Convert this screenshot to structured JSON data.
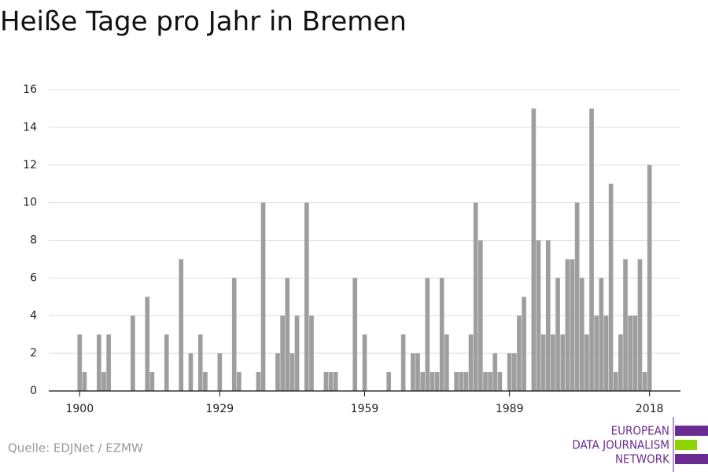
{
  "chart_data": {
    "type": "bar",
    "title": "Heiße Tage pro Jahr in Bremen",
    "source": "Quelle: EDJNet / EZMW",
    "logo": [
      "EUROPEAN",
      "DATA JOURNALISM",
      "NETWORK"
    ],
    "color": "#9e9e9e",
    "grid": true,
    "x": [
      1900,
      1901,
      1902,
      1903,
      1904,
      1905,
      1906,
      1907,
      1908,
      1909,
      1910,
      1911,
      1912,
      1913,
      1914,
      1915,
      1916,
      1917,
      1918,
      1919,
      1920,
      1921,
      1922,
      1923,
      1924,
      1925,
      1926,
      1927,
      1928,
      1929,
      1930,
      1931,
      1932,
      1933,
      1934,
      1935,
      1936,
      1937,
      1938,
      1939,
      1940,
      1941,
      1942,
      1943,
      1944,
      1945,
      1946,
      1947,
      1948,
      1949,
      1950,
      1951,
      1952,
      1953,
      1954,
      1955,
      1956,
      1957,
      1958,
      1959,
      1960,
      1961,
      1962,
      1963,
      1964,
      1965,
      1966,
      1967,
      1968,
      1969,
      1970,
      1971,
      1972,
      1973,
      1974,
      1975,
      1976,
      1977,
      1978,
      1979,
      1980,
      1981,
      1982,
      1983,
      1984,
      1985,
      1986,
      1987,
      1988,
      1989,
      1990,
      1991,
      1992,
      1993,
      1994,
      1995,
      1996,
      1997,
      1998,
      1999,
      2000,
      2001,
      2002,
      2003,
      2004,
      2005,
      2006,
      2007,
      2008,
      2009,
      2010,
      2011,
      2012,
      2013,
      2014,
      2015,
      2016,
      2017,
      2018
    ],
    "values": [
      3,
      1,
      0,
      0,
      3,
      1,
      3,
      0,
      0,
      0,
      0,
      4,
      0,
      0,
      5,
      1,
      0,
      0,
      3,
      0,
      0,
      7,
      0,
      2,
      0,
      3,
      1,
      0,
      0,
      2,
      0,
      0,
      6,
      1,
      0,
      0,
      0,
      1,
      10,
      0,
      0,
      2,
      4,
      6,
      2,
      4,
      0,
      10,
      4,
      0,
      0,
      1,
      1,
      1,
      0,
      0,
      0,
      6,
      0,
      3,
      0,
      0,
      0,
      0,
      1,
      0,
      0,
      3,
      0,
      2,
      2,
      1,
      6,
      1,
      1,
      6,
      3,
      0,
      1,
      1,
      1,
      3,
      10,
      8,
      1,
      1,
      2,
      1,
      0,
      2,
      2,
      4,
      5,
      0,
      15,
      8,
      3,
      8,
      3,
      6,
      3,
      7,
      7,
      10,
      6,
      3,
      15,
      4,
      6,
      4,
      11,
      1,
      3,
      7,
      4,
      4,
      7,
      1,
      12
    ],
    "xlim": [
      1893.6,
      2024.4
    ],
    "xticks": [
      1900,
      1929,
      1959,
      1989,
      2018
    ],
    "ylim": [
      0,
      16
    ],
    "yticks": [
      0,
      2,
      4,
      6,
      8,
      10,
      12,
      14,
      16
    ]
  }
}
